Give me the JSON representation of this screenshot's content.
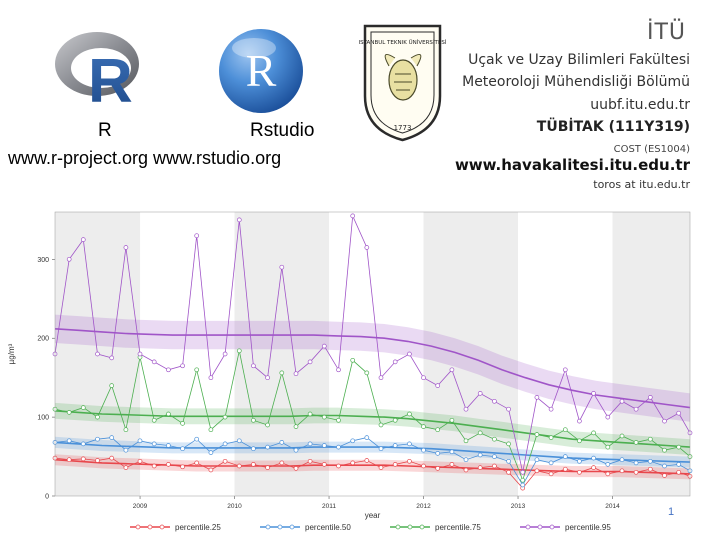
{
  "header": {
    "r_label": "R",
    "rstudio_label": "Rstudio",
    "urls": "www.r-project.org  www.rstudio.org",
    "r_logo_letter": "R",
    "rstudio_logo_letter": "R",
    "seal_year": "1773",
    "seal_text": "ISTANBUL TEKNIK ÜNİVERSİTESİ"
  },
  "affiliation": {
    "itu": "İTÜ",
    "faculty": "Uçak ve Uzay Bilimleri Fakültesi",
    "department": "Meteoroloji Mühendisliği Bölümü",
    "site": "uubf.itu.edu.tr",
    "project": "TÜBİTAK (111Y319)",
    "cost": "COST (ES1004)",
    "havakalitesi": "www.havakalitesi.itu.edu.tr",
    "contact": "toros at itu.edu.tr"
  },
  "page_number": "1",
  "colors": {
    "p25": "#e8474c",
    "p50": "#4a90d9",
    "p75": "#4caf50",
    "p95": "#a055c8"
  },
  "chart_data": {
    "type": "line",
    "xlabel": "year",
    "ylabel": "µg/m³",
    "ylim": [
      0,
      360
    ],
    "y_ticks": [
      "0",
      "100",
      "200",
      "300"
    ],
    "x_ticks": [
      "2009",
      "2010",
      "2011",
      "2012",
      "2013",
      "2014"
    ],
    "x_range": [
      2008.1,
      2014.82
    ],
    "grid": false,
    "legend": "bottom",
    "shaded_years": [
      [
        2008.1,
        2009
      ],
      [
        2010,
        2011
      ],
      [
        2012,
        2013
      ],
      [
        2014,
        2014.82
      ]
    ],
    "series": [
      {
        "name": "percentile.25",
        "color_key": "p25",
        "x": [
          2008.1,
          2008.25,
          2008.4,
          2008.55,
          2008.7,
          2008.85,
          2009.0,
          2009.15,
          2009.3,
          2009.45,
          2009.6,
          2009.75,
          2009.9,
          2010.05,
          2010.2,
          2010.35,
          2010.5,
          2010.65,
          2010.8,
          2010.95,
          2011.1,
          2011.25,
          2011.4,
          2011.55,
          2011.7,
          2011.85,
          2012.0,
          2012.15,
          2012.3,
          2012.45,
          2012.6,
          2012.75,
          2012.9,
          2013.05,
          2013.2,
          2013.35,
          2013.5,
          2013.65,
          2013.8,
          2013.95,
          2014.1,
          2014.25,
          2014.4,
          2014.55,
          2014.7,
          2014.82
        ],
        "values": [
          48,
          46,
          47,
          45,
          48,
          36,
          44,
          38,
          40,
          37,
          42,
          33,
          44,
          38,
          40,
          36,
          42,
          35,
          44,
          40,
          38,
          42,
          45,
          36,
          40,
          44,
          38,
          35,
          40,
          33,
          36,
          38,
          30,
          10,
          32,
          28,
          34,
          30,
          36,
          28,
          32,
          30,
          34,
          26,
          30,
          25
        ],
        "trend": [
          46,
          44,
          42,
          41,
          40,
          39,
          38,
          38,
          38,
          38,
          38,
          39,
          39,
          39,
          39,
          38,
          37,
          36,
          35,
          34,
          33,
          32,
          31,
          31,
          31,
          30,
          29,
          28
        ]
      },
      {
        "name": "percentile.50",
        "color_key": "p50",
        "x": [
          2008.1,
          2008.25,
          2008.4,
          2008.55,
          2008.7,
          2008.85,
          2009.0,
          2009.15,
          2009.3,
          2009.45,
          2009.6,
          2009.75,
          2009.9,
          2010.05,
          2010.2,
          2010.35,
          2010.5,
          2010.65,
          2010.8,
          2010.95,
          2011.1,
          2011.25,
          2011.4,
          2011.55,
          2011.7,
          2011.85,
          2012.0,
          2012.15,
          2012.3,
          2012.45,
          2012.6,
          2012.75,
          2012.9,
          2013.05,
          2013.2,
          2013.35,
          2013.5,
          2013.65,
          2013.8,
          2013.95,
          2014.1,
          2014.25,
          2014.4,
          2014.55,
          2014.7,
          2014.82
        ],
        "values": [
          68,
          70,
          66,
          72,
          74,
          58,
          70,
          66,
          64,
          60,
          72,
          55,
          66,
          70,
          60,
          62,
          68,
          58,
          66,
          64,
          62,
          70,
          74,
          60,
          64,
          66,
          58,
          54,
          56,
          46,
          52,
          50,
          44,
          14,
          46,
          42,
          50,
          44,
          48,
          40,
          46,
          42,
          44,
          38,
          40,
          32
        ],
        "trend": [
          68,
          66,
          64,
          63,
          62,
          61,
          61,
          61,
          61,
          61,
          61,
          62,
          62,
          62,
          62,
          61,
          60,
          58,
          56,
          54,
          52,
          50,
          48,
          47,
          46,
          45,
          44,
          43
        ]
      },
      {
        "name": "percentile.75",
        "color_key": "p75",
        "x": [
          2008.1,
          2008.25,
          2008.4,
          2008.55,
          2008.7,
          2008.85,
          2009.0,
          2009.15,
          2009.3,
          2009.45,
          2009.6,
          2009.75,
          2009.9,
          2010.05,
          2010.2,
          2010.35,
          2010.5,
          2010.65,
          2010.8,
          2010.95,
          2011.1,
          2011.25,
          2011.4,
          2011.55,
          2011.7,
          2011.85,
          2012.0,
          2012.15,
          2012.3,
          2012.45,
          2012.6,
          2012.75,
          2012.9,
          2013.05,
          2013.2,
          2013.35,
          2013.5,
          2013.65,
          2013.8,
          2013.95,
          2014.1,
          2014.25,
          2014.4,
          2014.55,
          2014.7,
          2014.82
        ],
        "values": [
          110,
          106,
          112,
          100,
          140,
          84,
          176,
          96,
          104,
          92,
          160,
          84,
          100,
          184,
          96,
          90,
          156,
          88,
          104,
          100,
          96,
          172,
          156,
          90,
          96,
          104,
          88,
          84,
          96,
          70,
          80,
          72,
          66,
          20,
          78,
          74,
          84,
          70,
          80,
          62,
          76,
          68,
          72,
          58,
          62,
          50
        ],
        "trend": [
          108,
          106,
          104,
          103,
          102,
          101,
          101,
          101,
          101,
          101,
          101,
          102,
          102,
          101,
          100,
          98,
          95,
          92,
          88,
          84,
          80,
          76,
          72,
          70,
          68,
          66,
          64,
          62
        ]
      },
      {
        "name": "percentile.95",
        "color_key": "p95",
        "x": [
          2008.1,
          2008.25,
          2008.4,
          2008.55,
          2008.7,
          2008.85,
          2009.0,
          2009.15,
          2009.3,
          2009.45,
          2009.6,
          2009.75,
          2009.9,
          2010.05,
          2010.2,
          2010.35,
          2010.5,
          2010.65,
          2010.8,
          2010.95,
          2011.1,
          2011.25,
          2011.4,
          2011.55,
          2011.7,
          2011.85,
          2012.0,
          2012.15,
          2012.3,
          2012.45,
          2012.6,
          2012.75,
          2012.9,
          2013.05,
          2013.2,
          2013.35,
          2013.5,
          2013.65,
          2013.8,
          2013.95,
          2014.1,
          2014.25,
          2014.4,
          2014.55,
          2014.7,
          2014.82
        ],
        "values": [
          180,
          300,
          325,
          180,
          175,
          315,
          180,
          170,
          160,
          165,
          330,
          150,
          180,
          350,
          165,
          150,
          290,
          155,
          170,
          190,
          160,
          355,
          315,
          150,
          170,
          180,
          150,
          140,
          160,
          110,
          130,
          120,
          110,
          30,
          125,
          110,
          160,
          95,
          130,
          100,
          120,
          110,
          125,
          95,
          105,
          80
        ],
        "trend": [
          212,
          210,
          208,
          206,
          205,
          204,
          204,
          204,
          204,
          204,
          204,
          204,
          203,
          202,
          200,
          196,
          190,
          182,
          172,
          160,
          150,
          141,
          134,
          128,
          124,
          120,
          116,
          112
        ]
      }
    ]
  }
}
